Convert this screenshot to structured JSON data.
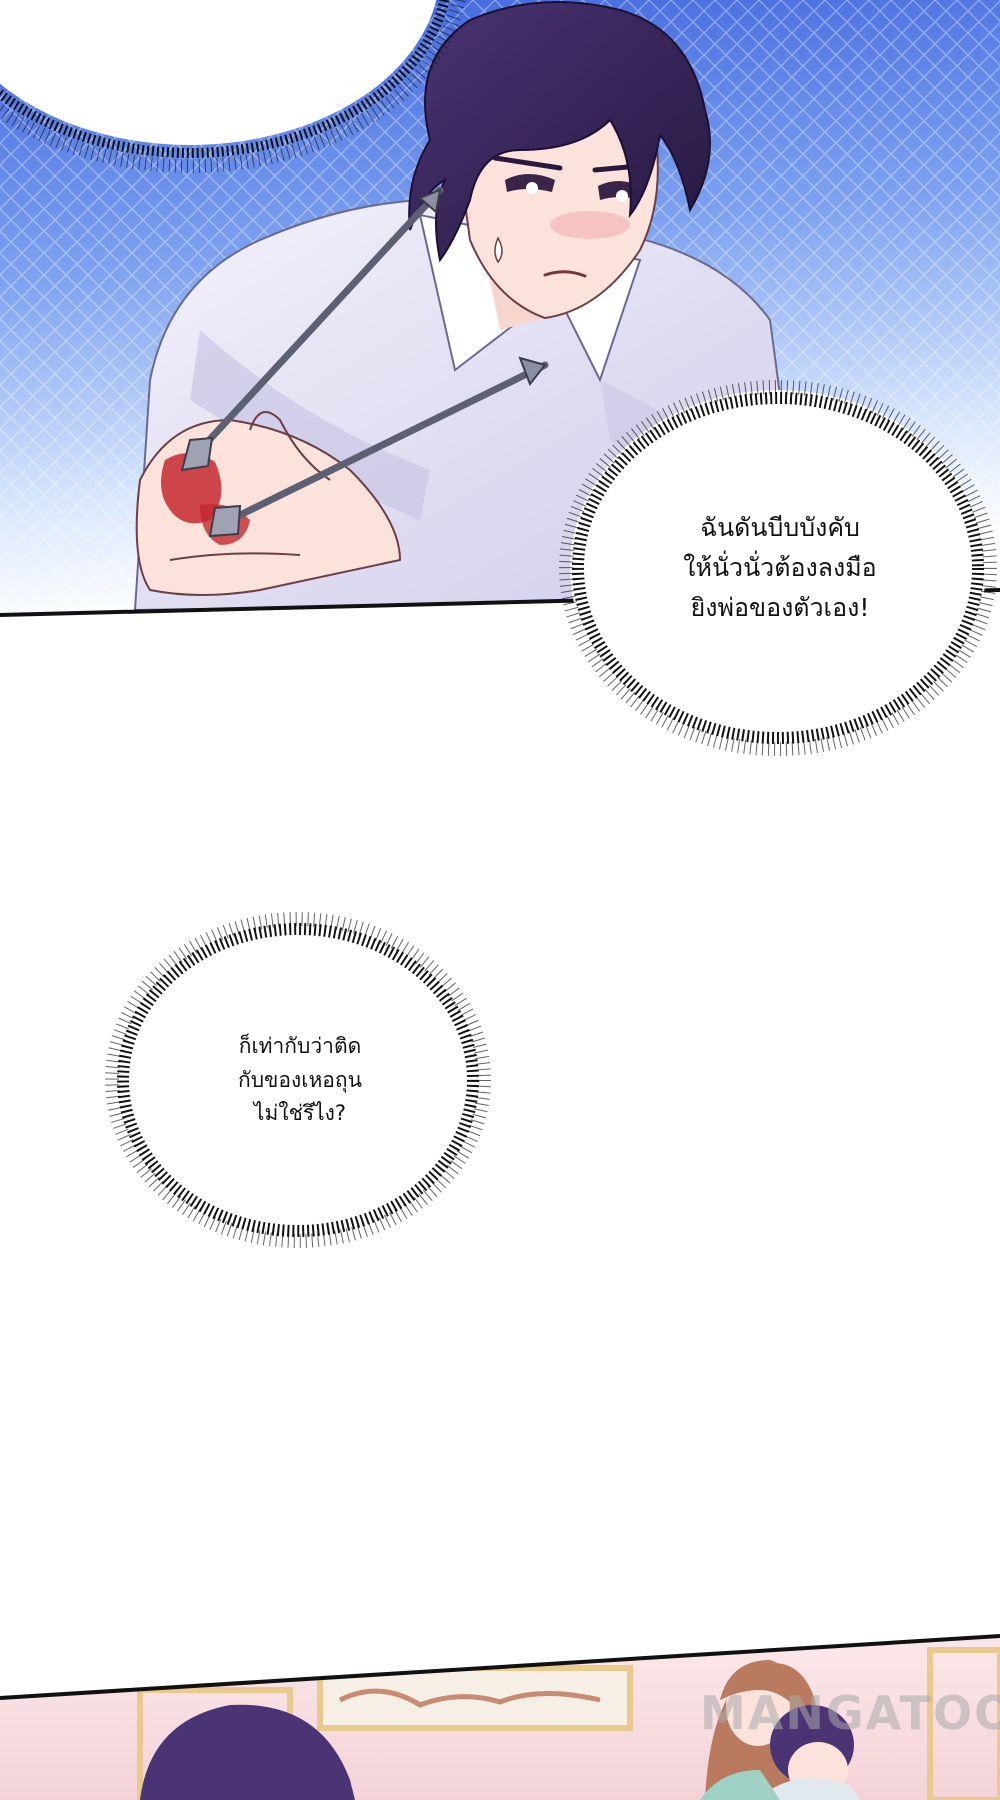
{
  "bubbles": {
    "first": {
      "lines": [
        "ฉันดันบีบบังคับ",
        "ให้นั่วนั่วต้องลงมือ",
        "ยิงพ่อของตัวเอง!"
      ]
    },
    "second": {
      "lines": [
        "ก็เท่ากับว่าติด",
        "กับของเหอถุน",
        "ไม่ใช่รึไง?"
      ]
    }
  },
  "watermark": "MANGATOON",
  "colors": {
    "sky_blue": "#4f78e6",
    "sky_light": "#cfe0fb",
    "hair": "#3b2a5e",
    "shirt": "#ecebf7",
    "shirt_shadow": "#c9c6e6",
    "skin": "#fbe3dc",
    "blood": "#c4282f",
    "arrow": "#5d6072",
    "room_wall": "#f7dfe2",
    "room_frame": "#e9c98d"
  }
}
